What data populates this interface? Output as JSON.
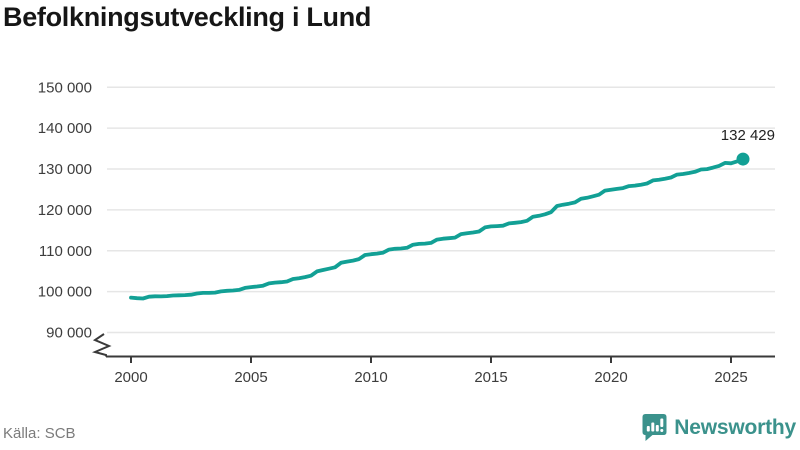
{
  "header": {
    "title": "Befolkningsutveckling i Lund"
  },
  "footer": {
    "source": "Källa: SCB",
    "brand_name": "Newsworthy"
  },
  "colors": {
    "line": "#12a095",
    "brand_teal": "#3b928c",
    "grid": "#e6e6e6",
    "axis": "#3a3a3a",
    "tick_text": "#3d3d3d",
    "title_text": "#161616",
    "source_text": "#7b7b7b"
  },
  "chart_data": {
    "type": "line",
    "title": "Befolkningsutveckling i Lund",
    "xlabel": "",
    "ylabel": "",
    "source": "Källa: SCB",
    "xlim": [
      1999.8,
      2027.3
    ],
    "ylim": [
      90000,
      150000
    ],
    "axis_break": true,
    "grid": "horizontal",
    "legend": "none",
    "end_label": "132 429",
    "end_value": 132429,
    "x_ticks": [
      {
        "value": 2000,
        "label": "2000"
      },
      {
        "value": 2005,
        "label": "2005"
      },
      {
        "value": 2010,
        "label": "2010"
      },
      {
        "value": 2015,
        "label": "2015"
      },
      {
        "value": 2020,
        "label": "2020"
      },
      {
        "value": 2025,
        "label": "2025"
      }
    ],
    "y_ticks": [
      {
        "value": 90000,
        "label": "90 000"
      },
      {
        "value": 100000,
        "label": "100 000"
      },
      {
        "value": 110000,
        "label": "110 000"
      },
      {
        "value": 120000,
        "label": "120 000"
      },
      {
        "value": 130000,
        "label": "130 000"
      },
      {
        "value": 140000,
        "label": "140 000"
      },
      {
        "value": 150000,
        "label": "150 000"
      }
    ],
    "series": [
      {
        "name": "Befolkning i Lund",
        "color": "#12a095",
        "points": [
          [
            2000.0,
            98550
          ],
          [
            2000.25,
            98380
          ],
          [
            2000.5,
            98320
          ],
          [
            2000.75,
            98750
          ],
          [
            2001.0,
            98850
          ],
          [
            2001.25,
            98820
          ],
          [
            2001.5,
            98900
          ],
          [
            2001.75,
            99050
          ],
          [
            2002.0,
            99100
          ],
          [
            2002.25,
            99150
          ],
          [
            2002.5,
            99250
          ],
          [
            2002.75,
            99550
          ],
          [
            2003.0,
            99700
          ],
          [
            2003.25,
            99680
          ],
          [
            2003.5,
            99750
          ],
          [
            2003.75,
            100050
          ],
          [
            2004.0,
            100200
          ],
          [
            2004.25,
            100280
          ],
          [
            2004.5,
            100420
          ],
          [
            2004.75,
            100900
          ],
          [
            2005.0,
            101100
          ],
          [
            2005.25,
            101250
          ],
          [
            2005.5,
            101450
          ],
          [
            2005.75,
            102000
          ],
          [
            2006.0,
            102200
          ],
          [
            2006.25,
            102300
          ],
          [
            2006.5,
            102480
          ],
          [
            2006.75,
            103100
          ],
          [
            2007.0,
            103286
          ],
          [
            2007.25,
            103550
          ],
          [
            2007.5,
            103900
          ],
          [
            2007.75,
            104950
          ],
          [
            2008.0,
            105286
          ],
          [
            2008.25,
            105600
          ],
          [
            2008.5,
            105950
          ],
          [
            2008.75,
            107050
          ],
          [
            2009.0,
            107351
          ],
          [
            2009.25,
            107600
          ],
          [
            2009.5,
            107950
          ],
          [
            2009.75,
            108950
          ],
          [
            2010.0,
            109147
          ],
          [
            2010.25,
            109300
          ],
          [
            2010.5,
            109520
          ],
          [
            2010.75,
            110280
          ],
          [
            2011.0,
            110488
          ],
          [
            2011.25,
            110560
          ],
          [
            2011.5,
            110720
          ],
          [
            2011.75,
            111480
          ],
          [
            2012.0,
            111666
          ],
          [
            2012.25,
            111760
          ],
          [
            2012.5,
            111920
          ],
          [
            2012.75,
            112720
          ],
          [
            2013.0,
            112950
          ],
          [
            2013.25,
            113060
          ],
          [
            2013.5,
            113220
          ],
          [
            2013.75,
            114080
          ],
          [
            2014.0,
            114291
          ],
          [
            2014.25,
            114460
          ],
          [
            2014.5,
            114720
          ],
          [
            2014.75,
            115720
          ],
          [
            2015.0,
            115968
          ],
          [
            2015.25,
            116020
          ],
          [
            2015.5,
            116120
          ],
          [
            2015.75,
            116680
          ],
          [
            2016.0,
            116834
          ],
          [
            2016.25,
            117020
          ],
          [
            2016.5,
            117320
          ],
          [
            2016.75,
            118320
          ],
          [
            2017.0,
            118542
          ],
          [
            2017.25,
            118920
          ],
          [
            2017.5,
            119420
          ],
          [
            2017.75,
            120950
          ],
          [
            2018.0,
            121274
          ],
          [
            2018.25,
            121520
          ],
          [
            2018.5,
            121820
          ],
          [
            2018.75,
            122720
          ],
          [
            2019.0,
            122948
          ],
          [
            2019.25,
            123320
          ],
          [
            2019.5,
            123720
          ],
          [
            2019.75,
            124720
          ],
          [
            2020.0,
            124935
          ],
          [
            2020.25,
            125120
          ],
          [
            2020.5,
            125320
          ],
          [
            2020.75,
            125820
          ],
          [
            2021.0,
            125941
          ],
          [
            2021.25,
            126160
          ],
          [
            2021.5,
            126460
          ],
          [
            2021.75,
            127220
          ],
          [
            2022.0,
            127376
          ],
          [
            2022.25,
            127620
          ],
          [
            2022.5,
            127920
          ],
          [
            2022.75,
            128620
          ],
          [
            2023.0,
            128775
          ],
          [
            2023.25,
            129020
          ],
          [
            2023.5,
            129320
          ],
          [
            2023.75,
            129870
          ],
          [
            2024.0,
            129985
          ],
          [
            2024.25,
            130350
          ],
          [
            2024.5,
            130750
          ],
          [
            2024.75,
            131500
          ],
          [
            2025.0,
            131400
          ],
          [
            2025.25,
            131850
          ],
          [
            2025.5,
            132429
          ]
        ]
      }
    ]
  }
}
